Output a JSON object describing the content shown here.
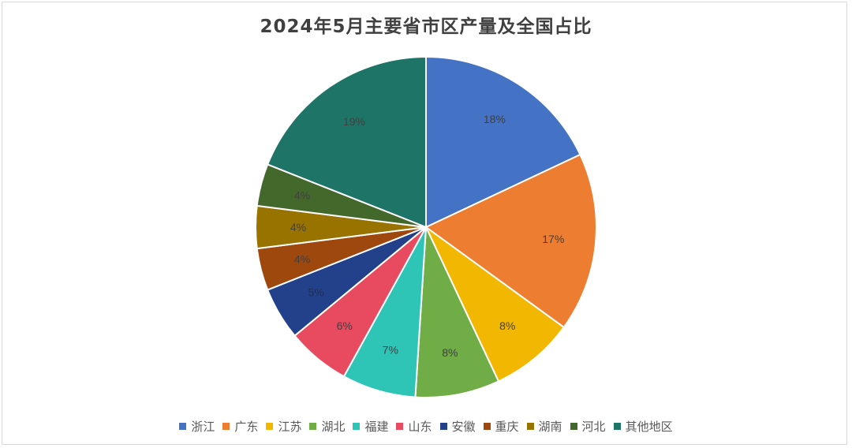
{
  "chart_data": {
    "type": "pie",
    "title": "2024年5月主要省市区产量及全国占比",
    "categories": [
      "浙江",
      "广东",
      "江苏",
      "湖北",
      "福建",
      "山东",
      "安徽",
      "重庆",
      "湖南",
      "河北",
      "其他地区"
    ],
    "values": [
      18,
      17,
      8,
      8,
      7,
      6,
      5,
      4,
      4,
      4,
      19
    ],
    "labels": [
      "18%",
      "17%",
      "8%",
      "8%",
      "7%",
      "6%",
      "5%",
      "4%",
      "4%",
      "4%",
      "19%"
    ],
    "colors": [
      "#4472C4",
      "#ED7D31",
      "#F2B700",
      "#70AD47",
      "#2EC4B6",
      "#E84A5F",
      "#22418A",
      "#9E480E",
      "#997300",
      "#43682B",
      "#1F7468"
    ],
    "label_colors": [
      "#404040",
      "#404040",
      "#404040",
      "#404040",
      "#404040",
      "#404040",
      "#1e2f5a",
      "#404040",
      "#404040",
      "#404040",
      "#404040"
    ],
    "legend_position": "bottom",
    "unit": "%"
  }
}
